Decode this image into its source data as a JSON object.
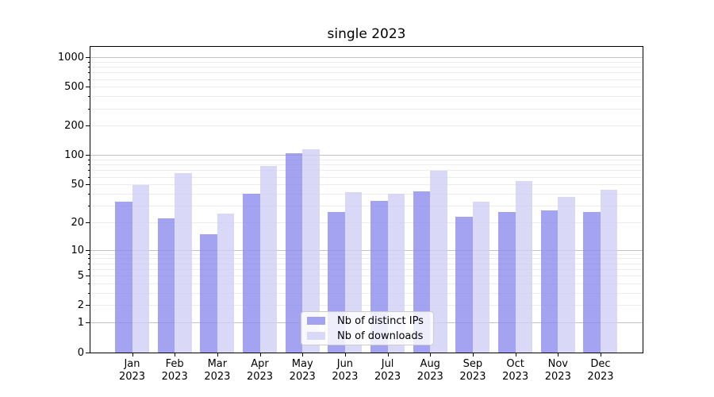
{
  "figure": {
    "background": "#ffffff"
  },
  "chart_data": {
    "type": "bar",
    "title": "single 2023",
    "categories": [
      "Jan",
      "Feb",
      "Mar",
      "Apr",
      "May",
      "Jun",
      "Jul",
      "Aug",
      "Sep",
      "Oct",
      "Nov",
      "Dec"
    ],
    "year_label": "2023",
    "series": [
      {
        "name": "Nb of distinct IPs",
        "color": "rgba(140,140,238,0.8)",
        "values": [
          33,
          22,
          15,
          40,
          105,
          26,
          34,
          43,
          23,
          26,
          27,
          26
        ]
      },
      {
        "name": "Nb of downloads",
        "color": "rgba(208,208,245,0.8)",
        "values": [
          50,
          66,
          25,
          78,
          117,
          42,
          40,
          70,
          33,
          55,
          37,
          44
        ]
      }
    ],
    "xlabel": "",
    "ylabel": "",
    "yscale": "symlog (log10(value+1))",
    "ylim": [
      0,
      1290
    ],
    "yticks": [
      0,
      1,
      2,
      5,
      10,
      20,
      50,
      100,
      200,
      500,
      1000
    ],
    "major_gridlines": [
      1,
      10,
      100,
      1000
    ],
    "minor_gridlines": [
      2,
      3,
      4,
      5,
      6,
      7,
      8,
      9,
      20,
      30,
      40,
      50,
      60,
      70,
      80,
      90,
      200,
      300,
      400,
      500,
      600,
      700,
      800,
      900
    ],
    "grid": "on",
    "legend_position": "lower center inside plot",
    "major_grid_color": "#c2c2c2",
    "minor_grid_color": "#ececec"
  }
}
